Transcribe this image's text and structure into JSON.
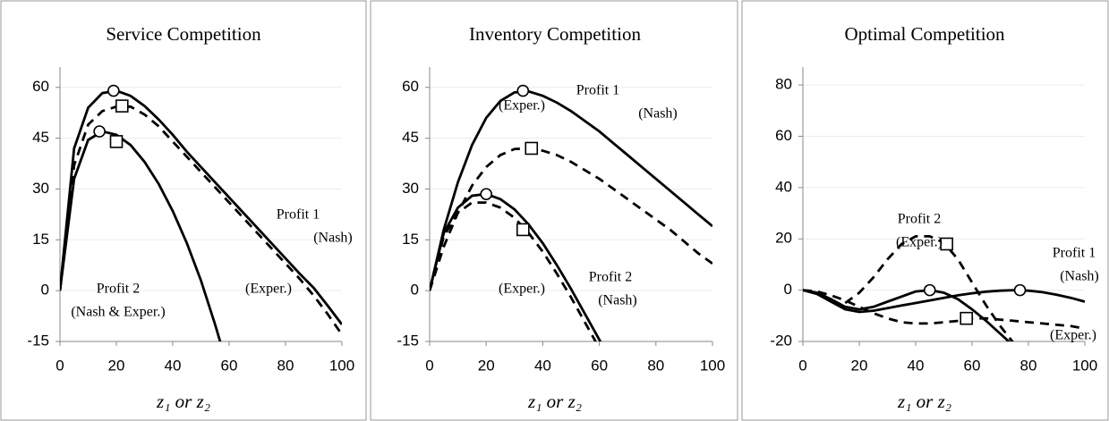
{
  "chart_data": [
    {
      "type": "line",
      "title": "Service Competition",
      "x_label": "z₁ or z₂",
      "x": [
        0,
        5,
        10,
        15,
        20,
        25,
        30,
        35,
        40,
        45,
        50,
        55,
        60,
        65,
        70,
        75,
        80,
        85,
        90,
        95,
        100
      ],
      "xlim": [
        0,
        100
      ],
      "xticks": [
        0,
        20,
        40,
        60,
        80,
        100
      ],
      "ylim": [
        -15,
        66
      ],
      "yticks": [
        -15,
        0,
        15,
        30,
        45,
        60
      ],
      "grid": true,
      "series": [
        {
          "style": "solid",
          "color": "#000000",
          "values": [
            0,
            42,
            54,
            58.3,
            59,
            57.5,
            54.5,
            50.5,
            46,
            41,
            36.5,
            32,
            27.5,
            23,
            18.5,
            14,
            9.5,
            5,
            0.8,
            -4.5,
            -10
          ]
        },
        {
          "style": "dashed",
          "color": "#000000",
          "values": [
            0,
            37,
            49,
            53,
            54.3,
            54.3,
            52,
            48.5,
            44,
            39.5,
            35,
            30.5,
            26,
            21.5,
            17,
            12.5,
            8,
            3.5,
            -1.5,
            -7,
            -13
          ]
        },
        {
          "style": "solid",
          "color": "#000000",
          "values": [
            0,
            33,
            44.5,
            47,
            46,
            43,
            38,
            31.5,
            23.5,
            14,
            3,
            -10,
            -24,
            null,
            null,
            null,
            null,
            null,
            null,
            null,
            null
          ]
        }
      ],
      "markers": [
        {
          "shape": "circle",
          "x": 19,
          "y": 59
        },
        {
          "shape": "square",
          "x": 22,
          "y": 54.5
        },
        {
          "shape": "circle",
          "x": 14,
          "y": 47
        },
        {
          "shape": "square",
          "x": 20,
          "y": 44
        }
      ],
      "annotations": [
        "Profit 1",
        "(Nash)",
        "(Exper.)",
        "Profit 2",
        "(Nash & Exper.)"
      ]
    },
    {
      "type": "line",
      "title": "Inventory Competition",
      "x_label": "z₁ or z₂",
      "x": [
        0,
        5,
        10,
        15,
        20,
        25,
        30,
        35,
        40,
        45,
        50,
        55,
        60,
        65,
        70,
        75,
        80,
        85,
        90,
        95,
        100
      ],
      "xlim": [
        0,
        100
      ],
      "xticks": [
        0,
        20,
        40,
        60,
        80,
        100
      ],
      "ylim": [
        -15,
        66
      ],
      "yticks": [
        -15,
        0,
        15,
        30,
        45,
        60
      ],
      "grid": true,
      "series": [
        {
          "style": "solid",
          "color": "#000000",
          "values": [
            0,
            18,
            32,
            43,
            51,
            56,
            58.5,
            58.8,
            57.5,
            55.5,
            53,
            50,
            47,
            43.5,
            40,
            36.5,
            33,
            29.5,
            26,
            22.5,
            19
          ]
        },
        {
          "style": "dashed",
          "color": "#000000",
          "values": [
            0,
            13,
            23,
            31,
            36.5,
            40,
            41.8,
            42,
            41.3,
            40,
            38,
            35.5,
            33,
            30,
            27,
            24,
            21,
            18,
            14.5,
            11,
            8
          ]
        },
        {
          "style": "solid",
          "color": "#000000",
          "values": [
            0,
            17,
            24.5,
            28,
            28.5,
            27,
            24,
            19.5,
            14,
            7.5,
            0.5,
            -7,
            -14.5,
            -22,
            null,
            null,
            null,
            null,
            null,
            null,
            null
          ]
        },
        {
          "style": "dashed",
          "color": "#000000",
          "values": [
            0,
            16,
            23,
            26,
            26,
            24.5,
            21.5,
            17,
            11.5,
            5,
            -2,
            -9.5,
            -17,
            null,
            null,
            null,
            null,
            null,
            null,
            null,
            null
          ]
        }
      ],
      "markers": [
        {
          "shape": "circle",
          "x": 33,
          "y": 59
        },
        {
          "shape": "square",
          "x": 36,
          "y": 42
        },
        {
          "shape": "circle",
          "x": 20,
          "y": 28.5
        },
        {
          "shape": "square",
          "x": 33,
          "y": 18
        }
      ],
      "annotations": [
        "Profit 1",
        "(Nash)",
        "(Exper.)",
        "(Exper.)",
        "Profit 2",
        "(Nash)"
      ]
    },
    {
      "type": "line",
      "title": "Optimal Competition",
      "x_label": "z₁ or z₂",
      "x": [
        0,
        5,
        10,
        15,
        20,
        25,
        30,
        35,
        40,
        45,
        50,
        55,
        60,
        65,
        70,
        75,
        80,
        85,
        90,
        95,
        100
      ],
      "xlim": [
        0,
        100
      ],
      "xticks": [
        0,
        20,
        40,
        60,
        80,
        100
      ],
      "ylim": [
        -20,
        87
      ],
      "yticks": [
        -20,
        0,
        20,
        40,
        60,
        80
      ],
      "grid": true,
      "series": [
        {
          "style": "dashed",
          "color": "#000000",
          "values": [
            null,
            null,
            null,
            -5,
            -1,
            5,
            12,
            18,
            21,
            21,
            18.5,
            12,
            3,
            -6,
            -14,
            -21,
            -28,
            null,
            null,
            null,
            null
          ]
        },
        {
          "style": "solid",
          "color": "#000000",
          "values": [
            0,
            -1,
            -3.5,
            -6.5,
            -7.5,
            -6.5,
            -4.5,
            -2.5,
            -0.5,
            0,
            -1,
            -3.5,
            -7.5,
            -12,
            -17,
            -22,
            null,
            null,
            null,
            null,
            null
          ]
        },
        {
          "style": "solid",
          "color": "#000000",
          "values": [
            0,
            -1.5,
            -4.5,
            -7.5,
            -8.5,
            -8,
            -7,
            -6,
            -5,
            -4,
            -3,
            -2,
            -1.2,
            -0.6,
            -0.2,
            0,
            -0.2,
            -0.8,
            -1.8,
            -3,
            -4.5
          ]
        },
        {
          "style": "dashed",
          "color": "#000000",
          "values": [
            0,
            -0.5,
            -2,
            -4,
            -6.5,
            -9,
            -11,
            -12.5,
            -13,
            -13,
            -12.5,
            -12,
            -11,
            -11,
            -11.5,
            -12,
            -12.5,
            -13,
            -13.5,
            -14,
            -15
          ]
        }
      ],
      "markers": [
        {
          "shape": "circle",
          "x": 45,
          "y": 0
        },
        {
          "shape": "circle",
          "x": 77,
          "y": 0
        },
        {
          "shape": "square",
          "x": 51,
          "y": 18
        },
        {
          "shape": "square",
          "x": 58,
          "y": -11
        }
      ],
      "annotations": [
        "Profit 2",
        "(Exper.)",
        "Profit 1",
        "(Nash)",
        "(Exper.)"
      ]
    }
  ]
}
